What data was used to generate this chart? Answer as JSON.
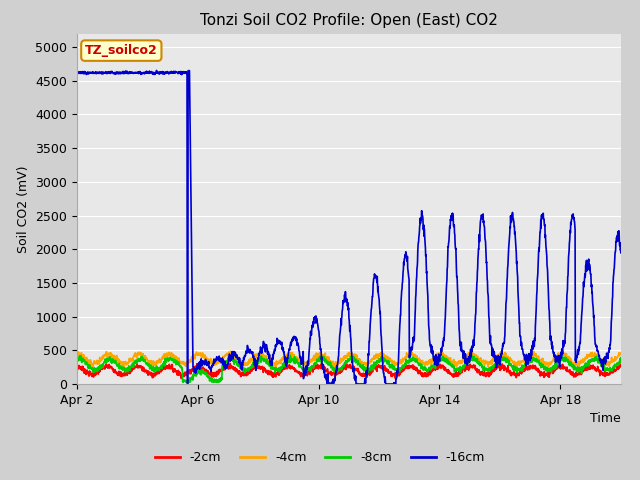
{
  "title": "Tonzi Soil CO2 Profile: Open (East) CO2",
  "ylabel": "Soil CO2 (mV)",
  "xlabel": "Time",
  "ylim": [
    0,
    5200
  ],
  "yticks": [
    0,
    500,
    1000,
    1500,
    2000,
    2500,
    3000,
    3500,
    4000,
    4500,
    5000
  ],
  "fig_bg_color": "#d0d0d0",
  "plot_bg_color": "#e8e8e8",
  "legend_items": [
    "-2cm",
    "-4cm",
    "-8cm",
    "-16cm"
  ],
  "legend_colors": [
    "#ff0000",
    "#ffa500",
    "#00cc00",
    "#0000cc"
  ],
  "watermark_text": "TZ_soilco2",
  "watermark_bg": "#ffffcc",
  "watermark_border": "#cc8800",
  "watermark_text_color": "#cc0000",
  "grid_color": "#ffffff",
  "line_width": 1.2,
  "xtick_labels": [
    "Apr 2",
    "Apr 6",
    "Apr 10",
    "Apr 14",
    "Apr 18"
  ],
  "xtick_positions": [
    0,
    4,
    8,
    12,
    16
  ]
}
